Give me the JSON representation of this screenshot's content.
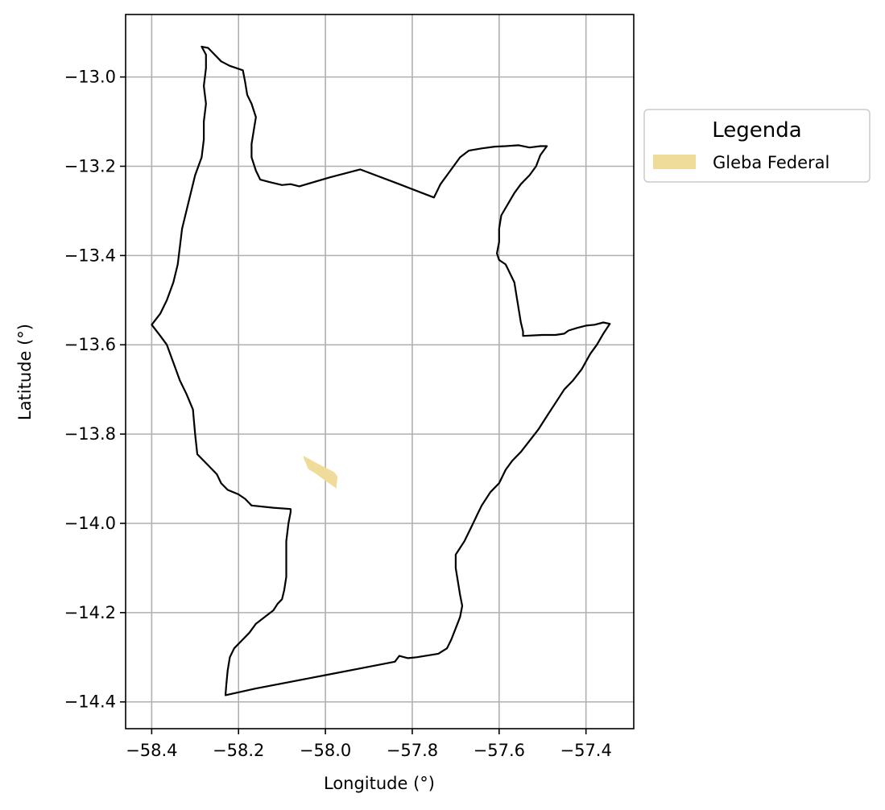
{
  "chart_data": {
    "type": "map",
    "xlabel": "Longitude (°)",
    "ylabel": "Latitude (°)",
    "xlim": [
      -58.46,
      -57.29
    ],
    "ylim": [
      -14.46,
      -12.86
    ],
    "x_ticks": [
      -58.4,
      -58.2,
      -58.0,
      -57.8,
      -57.6,
      -57.4
    ],
    "y_ticks": [
      -13.0,
      -13.2,
      -13.4,
      -13.6,
      -13.8,
      -14.0,
      -14.2,
      -14.4
    ],
    "x_tick_labels": [
      "−58.4",
      "−58.2",
      "−58.0",
      "−57.8",
      "−57.6",
      "−57.4"
    ],
    "y_tick_labels": [
      "−13.0",
      "−13.2",
      "−13.4",
      "−13.6",
      "−13.8",
      "−14.0",
      "−14.2",
      "−14.4"
    ],
    "grid": true,
    "boundary": {
      "stroke": "#000000",
      "coords": [
        [
          -58.4,
          -13.555
        ],
        [
          -58.38,
          -13.58
        ],
        [
          -58.365,
          -13.6
        ],
        [
          -58.35,
          -13.64
        ],
        [
          -58.335,
          -13.68
        ],
        [
          -58.32,
          -13.71
        ],
        [
          -58.305,
          -13.745
        ],
        [
          -58.3,
          -13.8
        ],
        [
          -58.295,
          -13.845
        ],
        [
          -58.27,
          -13.87
        ],
        [
          -58.25,
          -13.89
        ],
        [
          -58.24,
          -13.91
        ],
        [
          -58.225,
          -13.925
        ],
        [
          -58.2,
          -13.935
        ],
        [
          -58.185,
          -13.945
        ],
        [
          -58.17,
          -13.96
        ],
        [
          -58.12,
          -13.965
        ],
        [
          -58.08,
          -13.968
        ],
        [
          -58.08,
          -13.975
        ],
        [
          -58.085,
          -14.0
        ],
        [
          -58.09,
          -14.04
        ],
        [
          -58.09,
          -14.08
        ],
        [
          -58.09,
          -14.12
        ],
        [
          -58.095,
          -14.15
        ],
        [
          -58.1,
          -14.17
        ],
        [
          -58.11,
          -14.18
        ],
        [
          -58.12,
          -14.195
        ],
        [
          -58.14,
          -14.21
        ],
        [
          -58.16,
          -14.225
        ],
        [
          -58.175,
          -14.245
        ],
        [
          -58.195,
          -14.265
        ],
        [
          -58.21,
          -14.28
        ],
        [
          -58.22,
          -14.3
        ],
        [
          -58.225,
          -14.33
        ],
        [
          -58.228,
          -14.36
        ],
        [
          -58.23,
          -14.385
        ],
        [
          -58.16,
          -14.37
        ],
        [
          -58.08,
          -14.355
        ],
        [
          -58.0,
          -14.34
        ],
        [
          -57.92,
          -14.325
        ],
        [
          -57.84,
          -14.31
        ],
        [
          -57.83,
          -14.297
        ],
        [
          -57.81,
          -14.302
        ],
        [
          -57.79,
          -14.3
        ],
        [
          -57.74,
          -14.292
        ],
        [
          -57.72,
          -14.28
        ],
        [
          -57.71,
          -14.26
        ],
        [
          -57.7,
          -14.235
        ],
        [
          -57.69,
          -14.21
        ],
        [
          -57.685,
          -14.185
        ],
        [
          -57.69,
          -14.16
        ],
        [
          -57.695,
          -14.13
        ],
        [
          -57.7,
          -14.1
        ],
        [
          -57.7,
          -14.07
        ],
        [
          -57.69,
          -14.055
        ],
        [
          -57.68,
          -14.04
        ],
        [
          -57.67,
          -14.02
        ],
        [
          -57.66,
          -14.0
        ],
        [
          -57.65,
          -13.98
        ],
        [
          -57.64,
          -13.96
        ],
        [
          -57.62,
          -13.93
        ],
        [
          -57.6,
          -13.91
        ],
        [
          -57.585,
          -13.88
        ],
        [
          -57.57,
          -13.86
        ],
        [
          -57.55,
          -13.84
        ],
        [
          -57.53,
          -13.815
        ],
        [
          -57.51,
          -13.79
        ],
        [
          -57.49,
          -13.76
        ],
        [
          -57.47,
          -13.73
        ],
        [
          -57.45,
          -13.7
        ],
        [
          -57.43,
          -13.68
        ],
        [
          -57.41,
          -13.655
        ],
        [
          -57.39,
          -13.62
        ],
        [
          -57.375,
          -13.6
        ],
        [
          -57.36,
          -13.575
        ],
        [
          -57.345,
          -13.553
        ],
        [
          -57.36,
          -13.55
        ],
        [
          -57.38,
          -13.555
        ],
        [
          -57.4,
          -13.557
        ],
        [
          -57.42,
          -13.562
        ],
        [
          -57.44,
          -13.568
        ],
        [
          -57.45,
          -13.575
        ],
        [
          -57.47,
          -13.578
        ],
        [
          -57.5,
          -13.578
        ],
        [
          -57.545,
          -13.58
        ],
        [
          -57.545,
          -13.57
        ],
        [
          -57.55,
          -13.55
        ],
        [
          -57.555,
          -13.52
        ],
        [
          -57.56,
          -13.49
        ],
        [
          -57.565,
          -13.46
        ],
        [
          -57.575,
          -13.44
        ],
        [
          -57.585,
          -13.42
        ],
        [
          -57.6,
          -13.41
        ],
        [
          -57.605,
          -13.395
        ],
        [
          -57.6,
          -13.37
        ],
        [
          -57.6,
          -13.34
        ],
        [
          -57.595,
          -13.31
        ],
        [
          -57.58,
          -13.285
        ],
        [
          -57.565,
          -13.26
        ],
        [
          -57.55,
          -13.24
        ],
        [
          -57.53,
          -13.22
        ],
        [
          -57.515,
          -13.2
        ],
        [
          -57.505,
          -13.175
        ],
        [
          -57.49,
          -13.155
        ],
        [
          -57.505,
          -13.155
        ],
        [
          -57.53,
          -13.158
        ],
        [
          -57.555,
          -13.153
        ],
        [
          -57.585,
          -13.155
        ],
        [
          -57.61,
          -13.156
        ],
        [
          -57.64,
          -13.16
        ],
        [
          -57.67,
          -13.165
        ],
        [
          -57.69,
          -13.18
        ],
        [
          -57.705,
          -13.2
        ],
        [
          -57.72,
          -13.22
        ],
        [
          -57.735,
          -13.24
        ],
        [
          -57.75,
          -13.27
        ],
        [
          -57.83,
          -13.24
        ],
        [
          -57.92,
          -13.207
        ],
        [
          -57.99,
          -13.225
        ],
        [
          -58.06,
          -13.245
        ],
        [
          -58.08,
          -13.24
        ],
        [
          -58.1,
          -13.242
        ],
        [
          -58.13,
          -13.235
        ],
        [
          -58.15,
          -13.23
        ],
        [
          -58.16,
          -13.21
        ],
        [
          -58.17,
          -13.18
        ],
        [
          -58.17,
          -13.15
        ],
        [
          -58.165,
          -13.12
        ],
        [
          -58.16,
          -13.09
        ],
        [
          -58.17,
          -13.06
        ],
        [
          -58.18,
          -13.04
        ],
        [
          -58.185,
          -13.01
        ],
        [
          -58.19,
          -12.985
        ],
        [
          -58.22,
          -12.975
        ],
        [
          -58.24,
          -12.965
        ],
        [
          -58.26,
          -12.945
        ],
        [
          -58.27,
          -12.935
        ],
        [
          -58.285,
          -12.932
        ],
        [
          -58.275,
          -12.95
        ],
        [
          -58.275,
          -12.98
        ],
        [
          -58.28,
          -13.02
        ],
        [
          -58.275,
          -13.06
        ],
        [
          -58.28,
          -13.1
        ],
        [
          -58.28,
          -13.14
        ],
        [
          -58.285,
          -13.18
        ],
        [
          -58.3,
          -13.22
        ],
        [
          -58.31,
          -13.26
        ],
        [
          -58.32,
          -13.3
        ],
        [
          -58.33,
          -13.34
        ],
        [
          -58.335,
          -13.38
        ],
        [
          -58.34,
          -13.42
        ],
        [
          -58.35,
          -13.46
        ],
        [
          -58.365,
          -13.5
        ],
        [
          -58.38,
          -13.53
        ],
        [
          -58.4,
          -13.555
        ]
      ]
    },
    "gleba_federal": {
      "fill": "#f0dc9a",
      "coords": [
        [
          -58.05,
          -13.848
        ],
        [
          -58.045,
          -13.852
        ],
        [
          -58.02,
          -13.865
        ],
        [
          -58.0,
          -13.875
        ],
        [
          -57.98,
          -13.885
        ],
        [
          -57.972,
          -13.895
        ],
        [
          -57.975,
          -13.922
        ],
        [
          -57.98,
          -13.918
        ],
        [
          -58.0,
          -13.905
        ],
        [
          -58.02,
          -13.89
        ],
        [
          -58.04,
          -13.878
        ],
        [
          -58.045,
          -13.865
        ],
        [
          -58.05,
          -13.855
        ]
      ]
    },
    "legend": {
      "title": "Legenda",
      "position": "upper right outside",
      "entries": [
        {
          "label": "Gleba Federal",
          "color": "#f0dc9a"
        }
      ]
    }
  }
}
